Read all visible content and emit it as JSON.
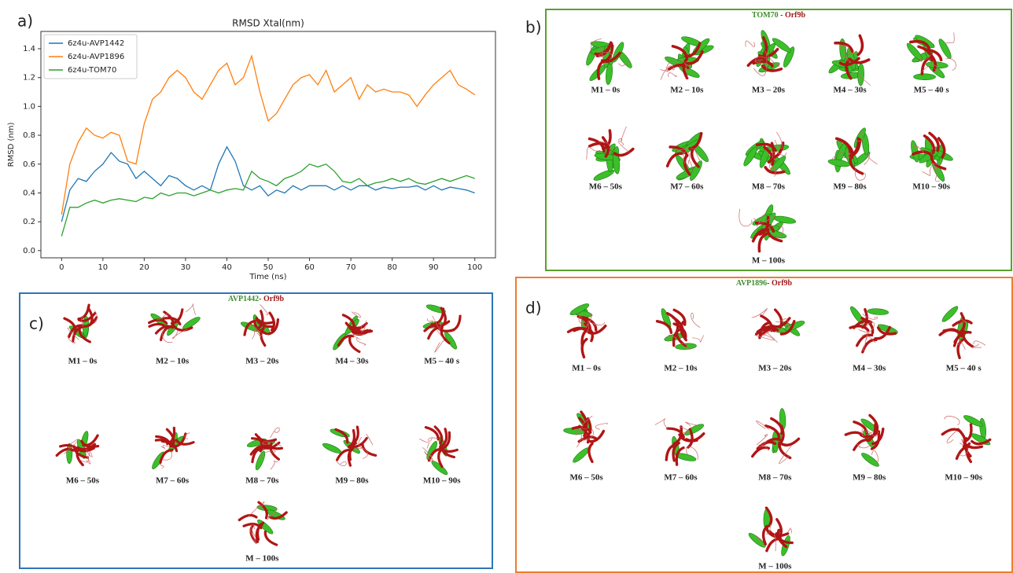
{
  "chart_data": {
    "type": "line",
    "title": "RMSD Xtal(nm)",
    "panel_label": "a)",
    "x_label": "Time (ns)",
    "y_label": "RMSD (nm)",
    "x": [
      0,
      2,
      4,
      6,
      8,
      10,
      12,
      14,
      16,
      18,
      20,
      22,
      24,
      26,
      28,
      30,
      32,
      34,
      36,
      38,
      40,
      42,
      44,
      46,
      48,
      50,
      52,
      54,
      56,
      58,
      60,
      62,
      64,
      66,
      68,
      70,
      72,
      74,
      76,
      78,
      80,
      82,
      84,
      86,
      88,
      90,
      92,
      94,
      96,
      98,
      100
    ],
    "series": [
      {
        "name": "6z4u-AVP1442",
        "color": "#1f77b4",
        "values": [
          0.2,
          0.42,
          0.5,
          0.48,
          0.55,
          0.6,
          0.68,
          0.62,
          0.6,
          0.5,
          0.55,
          0.5,
          0.45,
          0.52,
          0.5,
          0.45,
          0.42,
          0.45,
          0.42,
          0.6,
          0.72,
          0.62,
          0.45,
          0.42,
          0.45,
          0.38,
          0.42,
          0.4,
          0.45,
          0.42,
          0.45,
          0.45,
          0.45,
          0.42,
          0.45,
          0.42,
          0.45,
          0.45,
          0.42,
          0.44,
          0.43,
          0.44,
          0.44,
          0.45,
          0.42,
          0.45,
          0.42,
          0.44,
          0.43,
          0.42,
          0.4
        ]
      },
      {
        "name": "6z4u-AVP1896",
        "color": "#ff7f0e",
        "values": [
          0.25,
          0.6,
          0.75,
          0.85,
          0.8,
          0.78,
          0.82,
          0.8,
          0.62,
          0.6,
          0.88,
          1.05,
          1.1,
          1.2,
          1.25,
          1.2,
          1.1,
          1.05,
          1.15,
          1.25,
          1.3,
          1.15,
          1.2,
          1.35,
          1.1,
          0.9,
          0.95,
          1.05,
          1.15,
          1.2,
          1.22,
          1.15,
          1.25,
          1.1,
          1.15,
          1.2,
          1.05,
          1.15,
          1.1,
          1.12,
          1.1,
          1.1,
          1.08,
          1.0,
          1.08,
          1.15,
          1.2,
          1.25,
          1.15,
          1.12,
          1.08
        ]
      },
      {
        "name": "6z4u-TOM70",
        "color": "#2ca02c",
        "values": [
          0.1,
          0.3,
          0.3,
          0.33,
          0.35,
          0.33,
          0.35,
          0.36,
          0.35,
          0.34,
          0.37,
          0.36,
          0.4,
          0.38,
          0.4,
          0.4,
          0.38,
          0.4,
          0.42,
          0.4,
          0.42,
          0.43,
          0.42,
          0.55,
          0.5,
          0.48,
          0.45,
          0.5,
          0.52,
          0.55,
          0.6,
          0.58,
          0.6,
          0.55,
          0.48,
          0.47,
          0.5,
          0.45,
          0.47,
          0.48,
          0.5,
          0.48,
          0.5,
          0.47,
          0.46,
          0.48,
          0.5,
          0.48,
          0.5,
          0.52,
          0.5
        ]
      }
    ],
    "xlim": [
      -5,
      105
    ],
    "ylim": [
      -0.05,
      1.52
    ],
    "xticks": [
      0,
      10,
      20,
      30,
      40,
      50,
      60,
      70,
      80,
      90,
      100
    ],
    "yticks": [
      {
        "value": 0,
        "label": "0.0"
      },
      0.2,
      0.4,
      0.6,
      0.8,
      {
        "value": 1,
        "label": "1.0"
      },
      1.2,
      1.4
    ],
    "legend": "upper left",
    "grid": false
  },
  "panels": [
    {
      "label": "b)",
      "border": "#5aa02c",
      "title": [
        {
          "text": "TOM70",
          "color": "#3f8f2f"
        },
        {
          "text": " - ",
          "color": "#333333"
        },
        {
          "text": "Orf9b",
          "color": "#a01818"
        }
      ],
      "models": [
        "M1 – 0s",
        "M2 – 10s",
        "M3 – 20s",
        "M4 – 30s",
        "M5 – 40 s",
        "M6 – 50s",
        "M7 – 60s",
        "M8 – 70s",
        "M9 – 80s",
        "M10 – 90s",
        "M – 100s"
      ]
    },
    {
      "label": "c)",
      "border": "#2e75b6",
      "title": [
        {
          "text": "AVP1442",
          "color": "#3f8f2f"
        },
        {
          "text": "- ",
          "color": "#333333"
        },
        {
          "text": "Orf9b",
          "color": "#a01818"
        }
      ],
      "models": [
        "M1 – 0s",
        "M2 – 10s",
        "M3 – 20s",
        "M4 – 30s",
        "M5 – 40 s",
        "M6 – 50s",
        "M7 – 60s",
        "M8 – 70s",
        "M9 – 80s",
        "M10 – 90s",
        "M – 100s"
      ]
    },
    {
      "label": "d)",
      "border": "#ed7d31",
      "title": [
        {
          "text": "AVP1896",
          "color": "#3f8f2f"
        },
        {
          "text": "- ",
          "color": "#333333"
        },
        {
          "text": "Orf9b",
          "color": "#a01818"
        }
      ],
      "models": [
        "M1 – 0s",
        "M2 – 10s",
        "M3 – 20s",
        "M4 – 30s",
        "M5 – 40 s",
        "M6 – 50s",
        "M7 – 60s",
        "M8 – 70s",
        "M9 – 80s",
        "M10 – 90s",
        "M – 100s"
      ]
    }
  ]
}
